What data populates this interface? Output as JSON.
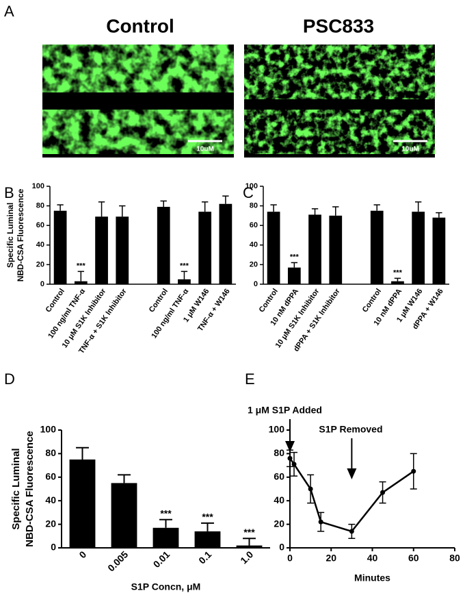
{
  "panel_a": {
    "letter": "A",
    "images": [
      {
        "title": "Control",
        "scale_bar": "10uM"
      },
      {
        "title": "PSC833",
        "scale_bar": "10uM"
      }
    ]
  },
  "chart_data": [
    {
      "type": "bar",
      "panel": "B",
      "ylabel": [
        "Specific Luminal",
        "NBD-CSA Fluorescence"
      ],
      "categories": [
        "Control",
        "100 ng/ml TNF-α",
        "10 μM S1K Inhibitor",
        "TNF-α + S1K Inhibitor",
        null,
        "Control",
        "100 ng/ml TNF-α",
        "1 μM W146",
        "TNF-α + W146"
      ],
      "values": [
        75,
        3,
        69,
        69,
        null,
        79,
        5,
        74,
        82
      ],
      "errors": [
        6,
        10,
        15,
        11,
        null,
        6,
        8,
        10,
        8
      ],
      "significance": [
        null,
        "***",
        null,
        null,
        null,
        null,
        "***",
        null,
        null
      ],
      "color": "#000000",
      "ylim": [
        0,
        100
      ],
      "yticks": [
        0,
        20,
        40,
        60,
        80,
        100
      ]
    },
    {
      "type": "bar",
      "panel": "C",
      "categories": [
        "Control",
        "10 nM dPPA",
        "10 μM S1K Inhibitor",
        "dPPA + S1K Inhibitor",
        null,
        "Control",
        "10 nM dPPA",
        "1 μM W146",
        "dPPA + W146"
      ],
      "values": [
        74,
        17,
        71,
        70,
        null,
        75,
        3,
        74,
        68
      ],
      "errors": [
        7,
        5,
        6,
        9,
        null,
        6,
        3,
        10,
        5
      ],
      "significance": [
        null,
        "***",
        null,
        null,
        null,
        null,
        "***",
        null,
        null
      ],
      "color": "#000000",
      "ylim": [
        0,
        100
      ],
      "yticks": [
        0,
        20,
        40,
        60,
        80,
        100
      ]
    },
    {
      "type": "bar",
      "panel": "D",
      "ylabel": [
        "Specific Luminal",
        "NBD-CSA Fluorescence"
      ],
      "xlabel": "S1P Concn, μM",
      "categories": [
        "0",
        "0.005",
        "0.01",
        "0.1",
        "1.0"
      ],
      "values": [
        75,
        55,
        17,
        14,
        2
      ],
      "errors": [
        10,
        7,
        7,
        7,
        6
      ],
      "significance": [
        null,
        null,
        "***",
        "***",
        "***"
      ],
      "color": "#000000",
      "ylim": [
        0,
        100
      ],
      "yticks": [
        0,
        20,
        40,
        60,
        80,
        100
      ]
    },
    {
      "type": "line",
      "panel": "E",
      "xlabel": "Minutes",
      "x": [
        0,
        2,
        10,
        15,
        30,
        45,
        60
      ],
      "values": [
        76,
        71,
        50,
        22,
        14,
        47,
        65
      ],
      "errors": [
        7,
        10,
        12,
        8,
        6,
        9,
        15
      ],
      "annotations": [
        {
          "text": "1 μM S1P Added",
          "x": 0
        },
        {
          "text": "S1P Removed",
          "x": 30
        }
      ],
      "color": "#000000",
      "xlim": [
        0,
        80
      ],
      "xticks": [
        0,
        20,
        40,
        60,
        80
      ],
      "ylim": [
        0,
        100
      ],
      "yticks": [
        0,
        20,
        40,
        60,
        80,
        100
      ]
    }
  ]
}
